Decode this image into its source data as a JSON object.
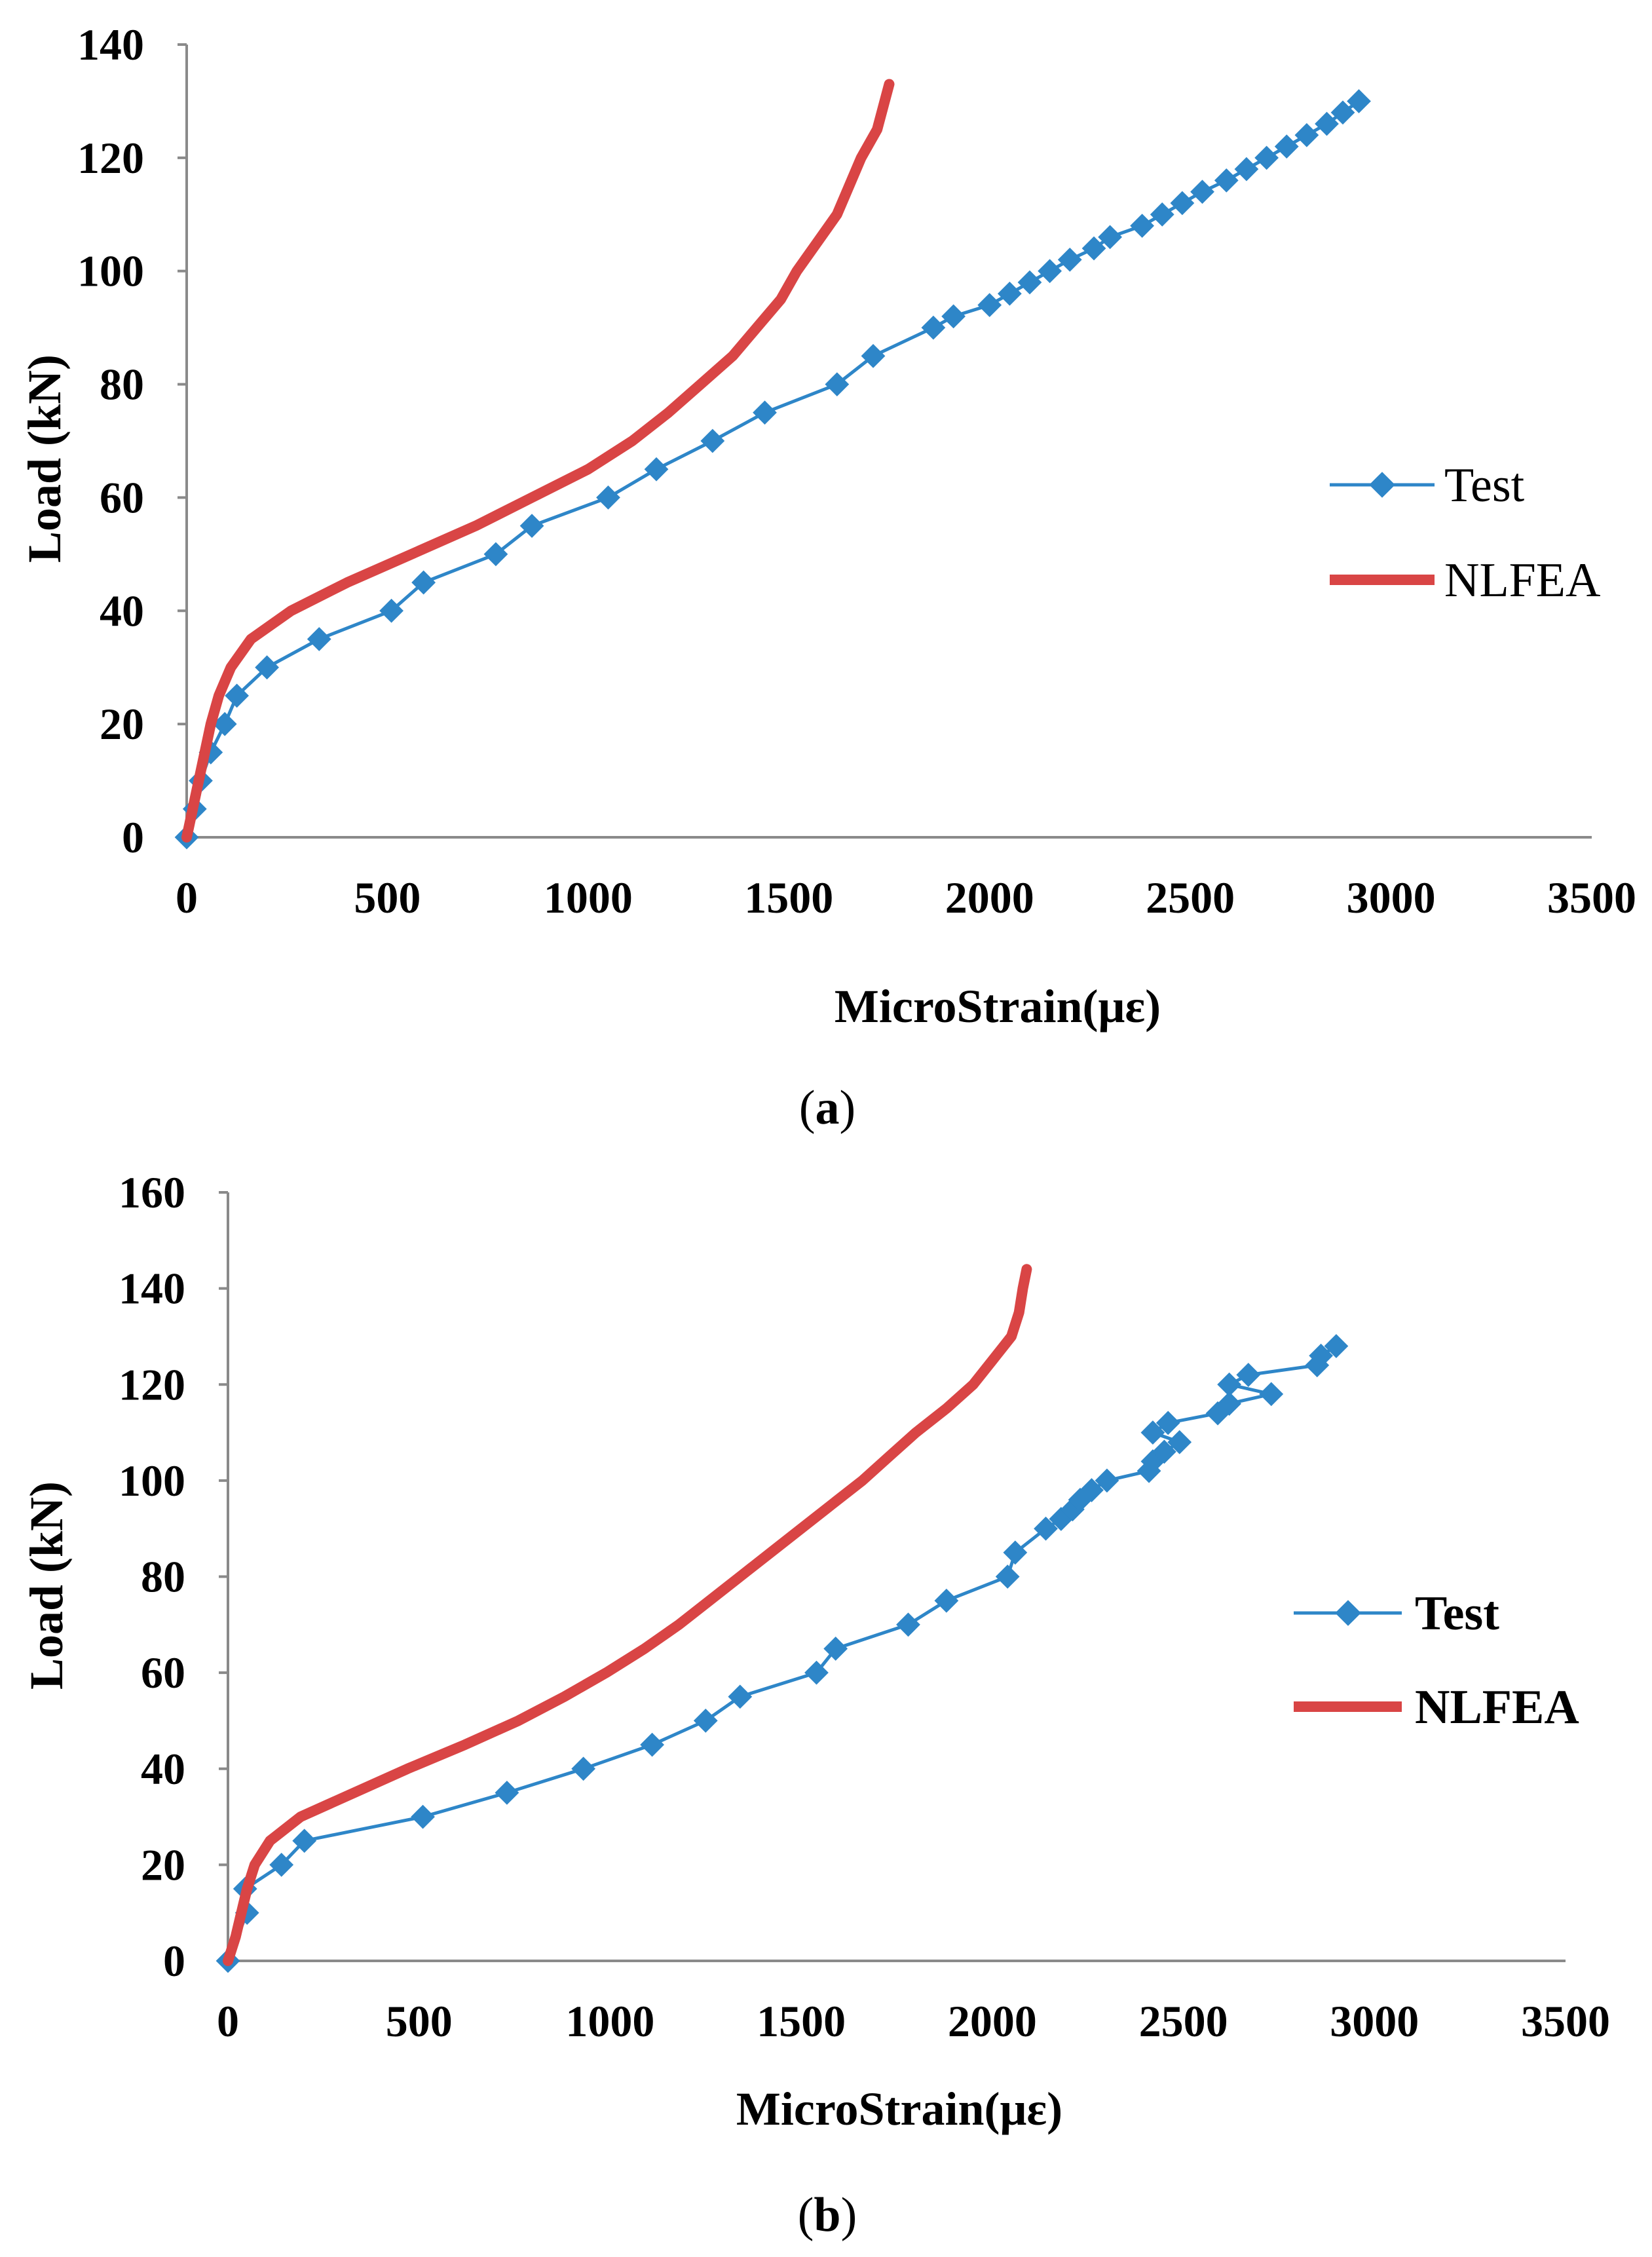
{
  "chart_data": [
    {
      "type": "line",
      "caption_letter": "a",
      "xlabel": "MicroStrain(με)",
      "ylabel": "Load (kN)",
      "xlim": [
        0,
        3500
      ],
      "ylim": [
        0,
        140
      ],
      "xticks": [
        0,
        500,
        1000,
        1500,
        2000,
        2500,
        3000,
        3500
      ],
      "yticks": [
        0,
        20,
        40,
        60,
        80,
        100,
        120,
        140
      ],
      "legend_position": "right",
      "series": [
        {
          "name": "Test",
          "color": "#2e86c8",
          "marker": "diamond",
          "points": [
            [
              0,
              0
            ],
            [
              20,
              5
            ],
            [
              35,
              10
            ],
            [
              60,
              15
            ],
            [
              95,
              20
            ],
            [
              125,
              25
            ],
            [
              200,
              30
            ],
            [
              330,
              35
            ],
            [
              510,
              40
            ],
            [
              590,
              45
            ],
            [
              770,
              50
            ],
            [
              860,
              55
            ],
            [
              1050,
              60
            ],
            [
              1170,
              65
            ],
            [
              1310,
              70
            ],
            [
              1440,
              75
            ],
            [
              1620,
              80
            ],
            [
              1710,
              85
            ],
            [
              1860,
              90
            ],
            [
              1910,
              92
            ],
            [
              2000,
              94
            ],
            [
              2050,
              96
            ],
            [
              2100,
              98
            ],
            [
              2150,
              100
            ],
            [
              2200,
              102
            ],
            [
              2260,
              104
            ],
            [
              2300,
              106
            ],
            [
              2380,
              108
            ],
            [
              2430,
              110
            ],
            [
              2480,
              112
            ],
            [
              2530,
              114
            ],
            [
              2590,
              116
            ],
            [
              2640,
              118
            ],
            [
              2690,
              120
            ],
            [
              2740,
              122
            ],
            [
              2790,
              124
            ],
            [
              2840,
              126
            ],
            [
              2880,
              128
            ],
            [
              2920,
              130
            ]
          ]
        },
        {
          "name": "NLFEA",
          "color": "#d94545",
          "marker": "none",
          "points": [
            [
              0,
              0
            ],
            [
              15,
              5
            ],
            [
              30,
              10
            ],
            [
              45,
              15
            ],
            [
              60,
              20
            ],
            [
              80,
              25
            ],
            [
              110,
              30
            ],
            [
              160,
              35
            ],
            [
              260,
              40
            ],
            [
              400,
              45
            ],
            [
              560,
              50
            ],
            [
              720,
              55
            ],
            [
              860,
              60
            ],
            [
              1000,
              65
            ],
            [
              1110,
              70
            ],
            [
              1200,
              75
            ],
            [
              1280,
              80
            ],
            [
              1360,
              85
            ],
            [
              1420,
              90
            ],
            [
              1480,
              95
            ],
            [
              1520,
              100
            ],
            [
              1570,
              105
            ],
            [
              1620,
              110
            ],
            [
              1650,
              115
            ],
            [
              1680,
              120
            ],
            [
              1720,
              125
            ],
            [
              1750,
              133
            ]
          ]
        }
      ]
    },
    {
      "type": "line",
      "caption_letter": "b",
      "xlabel": "MicroStrain(με)",
      "ylabel": "Load (kN)",
      "xlim": [
        0,
        3500
      ],
      "ylim": [
        0,
        160
      ],
      "xticks": [
        0,
        500,
        1000,
        1500,
        2000,
        2500,
        3000,
        3500
      ],
      "yticks": [
        0,
        20,
        40,
        60,
        80,
        100,
        120,
        140,
        160
      ],
      "legend_position": "right",
      "series": [
        {
          "name": "Test",
          "color": "#2e86c8",
          "marker": "diamond",
          "points": [
            [
              0,
              0
            ],
            [
              50,
              10
            ],
            [
              45,
              15
            ],
            [
              140,
              20
            ],
            [
              200,
              25
            ],
            [
              510,
              30
            ],
            [
              730,
              35
            ],
            [
              930,
              40
            ],
            [
              1110,
              45
            ],
            [
              1250,
              50
            ],
            [
              1340,
              55
            ],
            [
              1540,
              60
            ],
            [
              1590,
              65
            ],
            [
              1780,
              70
            ],
            [
              1880,
              75
            ],
            [
              2040,
              80
            ],
            [
              2060,
              85
            ],
            [
              2140,
              90
            ],
            [
              2180,
              92
            ],
            [
              2210,
              94
            ],
            [
              2230,
              96
            ],
            [
              2260,
              98
            ],
            [
              2300,
              100
            ],
            [
              2410,
              102
            ],
            [
              2420,
              104
            ],
            [
              2450,
              106
            ],
            [
              2490,
              108
            ],
            [
              2420,
              110
            ],
            [
              2460,
              112
            ],
            [
              2590,
              114
            ],
            [
              2620,
              116
            ],
            [
              2730,
              118
            ],
            [
              2620,
              120
            ],
            [
              2670,
              122
            ],
            [
              2850,
              124
            ],
            [
              2860,
              126
            ],
            [
              2900,
              128
            ]
          ]
        },
        {
          "name": "NLFEA",
          "color": "#d94545",
          "marker": "none",
          "points": [
            [
              0,
              0
            ],
            [
              20,
              5
            ],
            [
              35,
              10
            ],
            [
              50,
              15
            ],
            [
              70,
              20
            ],
            [
              110,
              25
            ],
            [
              190,
              30
            ],
            [
              330,
              35
            ],
            [
              470,
              40
            ],
            [
              620,
              45
            ],
            [
              760,
              50
            ],
            [
              880,
              55
            ],
            [
              990,
              60
            ],
            [
              1090,
              65
            ],
            [
              1180,
              70
            ],
            [
              1260,
              75
            ],
            [
              1340,
              80
            ],
            [
              1420,
              85
            ],
            [
              1500,
              90
            ],
            [
              1580,
              95
            ],
            [
              1660,
              100
            ],
            [
              1730,
              105
            ],
            [
              1800,
              110
            ],
            [
              1880,
              115
            ],
            [
              1950,
              120
            ],
            [
              2000,
              125
            ],
            [
              2050,
              130
            ],
            [
              2070,
              135
            ],
            [
              2080,
              140
            ],
            [
              2090,
              144
            ]
          ]
        }
      ]
    }
  ]
}
